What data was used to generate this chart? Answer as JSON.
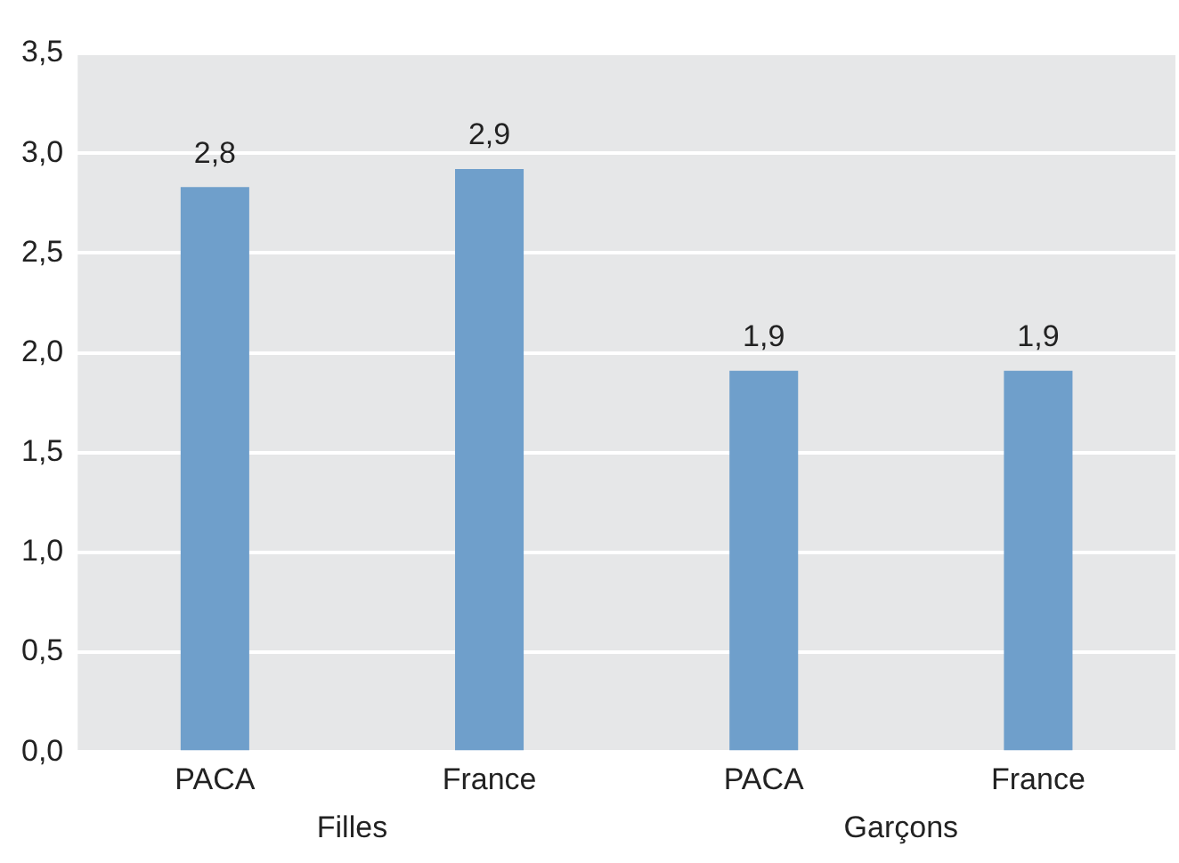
{
  "chart_data": {
    "type": "bar",
    "categories": [
      "PACA",
      "France",
      "PACA",
      "France"
    ],
    "values": [
      2.83,
      2.92,
      1.91,
      1.91
    ],
    "color": "#6f9fcb",
    "value_labels": [
      "2,8",
      "2,9",
      "1,9",
      "1,9"
    ],
    "annotations": [
      "Filles",
      "Garçons"
    ],
    "ylim": [
      0,
      3.5
    ],
    "yticks": [
      {
        "value": 0,
        "label": "0,0"
      },
      {
        "value": 0.5,
        "label": "0,5"
      },
      {
        "value": 1,
        "label": "1,0"
      },
      {
        "value": 1.5,
        "label": "1,5"
      },
      {
        "value": 2,
        "label": "2,0"
      },
      {
        "value": 2.5,
        "label": "2,5"
      },
      {
        "value": 3,
        "label": "3,0"
      },
      {
        "value": 3.5,
        "label": "3,5"
      }
    ],
    "grid": "y",
    "legend": false
  }
}
